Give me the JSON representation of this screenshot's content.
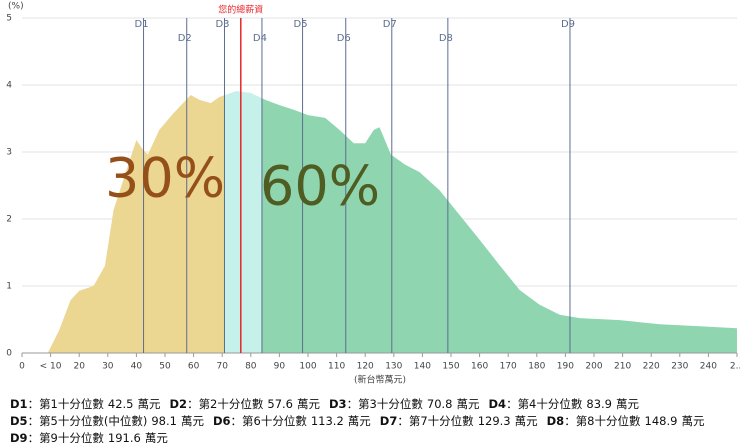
{
  "chart_data": {
    "type": "area",
    "y_axis_label": "(%)",
    "x_axis_label": "(新台幣萬元)",
    "x": [
      9,
      13,
      17,
      20,
      25,
      29,
      32,
      36,
      40,
      42,
      44,
      48,
      53,
      59,
      62,
      66,
      69,
      75,
      80,
      85,
      90,
      95,
      100,
      106,
      111,
      116,
      120,
      123,
      125,
      129,
      134,
      139,
      146,
      153,
      160,
      167,
      174,
      181,
      188,
      195,
      209,
      223,
      237,
      250
    ],
    "values": [
      0,
      0.34,
      0.79,
      0.93,
      1.0,
      1.3,
      2.13,
      2.66,
      3.18,
      3.05,
      2.96,
      3.33,
      3.58,
      3.85,
      3.78,
      3.73,
      3.82,
      3.91,
      3.88,
      3.78,
      3.7,
      3.63,
      3.55,
      3.51,
      3.33,
      3.13,
      3.13,
      3.33,
      3.37,
      2.96,
      2.81,
      2.7,
      2.43,
      2.06,
      1.69,
      1.31,
      0.94,
      0.72,
      0.57,
      0.52,
      0.49,
      0.43,
      0.4,
      0.37
    ],
    "xlim": [
      0,
      250
    ],
    "ylim": [
      0,
      5
    ],
    "yticks": [
      0,
      1,
      2,
      3,
      4,
      5
    ],
    "xticks": [
      0,
      {
        "value": 10,
        "label": "< 10"
      },
      20,
      30,
      40,
      50,
      60,
      70,
      80,
      90,
      100,
      110,
      120,
      130,
      140,
      150,
      160,
      170,
      180,
      190,
      200,
      210,
      220,
      230,
      240,
      {
        "value": 250,
        "label": "2..."
      }
    ],
    "grid": true,
    "region_colors": [
      "#ebd692",
      "#c6f0ea",
      "#8ed5b0"
    ],
    "line_color": "#5d6d8e",
    "separator": "：",
    "value_unit": "萬元",
    "deciles": [
      {
        "name": "D1",
        "desc": "第1十分位數",
        "value": 42.5
      },
      {
        "name": "D2",
        "desc": "第2十分位數",
        "value": 57.6
      },
      {
        "name": "D3",
        "desc": "第3十分位數",
        "value": 70.8
      },
      {
        "name": "D4",
        "desc": "第4十分位數",
        "value": 83.9
      },
      {
        "name": "D5",
        "desc": "第5十分位數(中位數)",
        "value": 98.1
      },
      {
        "name": "D6",
        "desc": "第6十分位數",
        "value": 113.2
      },
      {
        "name": "D7",
        "desc": "第7十分位數",
        "value": 129.3
      },
      {
        "name": "D8",
        "desc": "第8十分位數",
        "value": 148.9
      },
      {
        "name": "D9",
        "desc": "第9十分位數",
        "value": 191.6
      }
    ],
    "marker": {
      "label": "您的總薪資",
      "value": 76.5,
      "color": "#e8262a"
    },
    "annotations": [
      {
        "value": 30,
        "label": "30%",
        "color": "#95501a"
      },
      {
        "value": 60,
        "label": "60%",
        "color": "#4f5c22"
      }
    ]
  }
}
